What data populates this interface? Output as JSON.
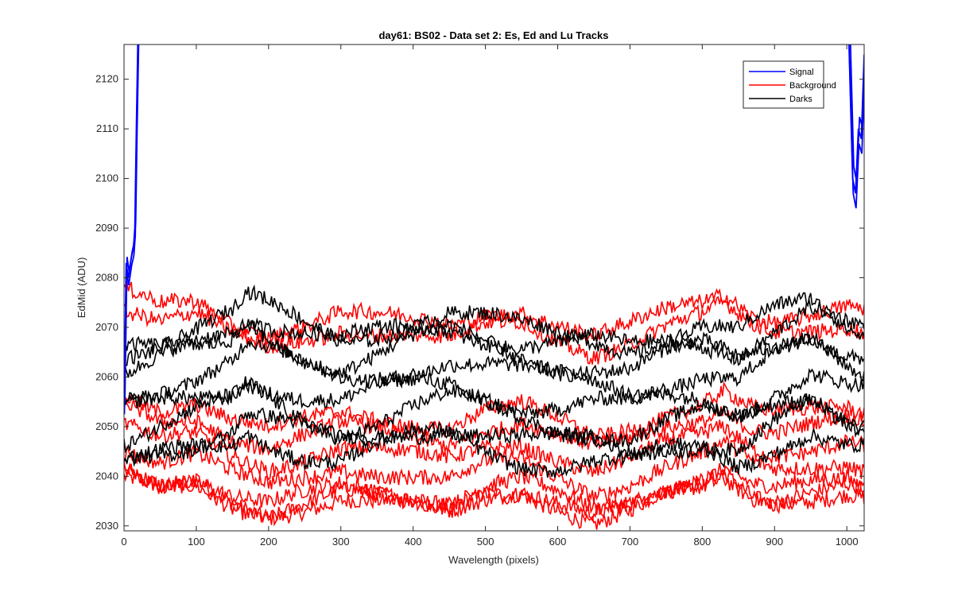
{
  "chart_data": {
    "type": "line",
    "title": "day61: BS02 - Data set 2: Es, Ed and Lu Tracks",
    "xlabel": "Wavelength (pixels)",
    "ylabel": "EdMid (ADU)",
    "xlim": [
      0,
      1024
    ],
    "ylim": [
      2029,
      2127
    ],
    "x_ticks": [
      0,
      100,
      200,
      300,
      400,
      500,
      600,
      700,
      800,
      900,
      1000
    ],
    "y_ticks": [
      2030,
      2040,
      2050,
      2060,
      2070,
      2080,
      2090,
      2100,
      2110,
      2120
    ],
    "grid": false,
    "legend_position": "top-right",
    "series": [
      {
        "name": "Signal",
        "color": "#0000ff",
        "values": [
          [
            0,
            2054
          ],
          [
            3,
            2083
          ],
          [
            6,
            2080
          ],
          [
            10,
            2084
          ],
          [
            13,
            2086
          ],
          [
            15,
            2090
          ],
          [
            17,
            2110
          ],
          [
            19,
            2127
          ],
          [
            1003,
            2127
          ],
          [
            1008,
            2100
          ],
          [
            1012,
            2097
          ],
          [
            1016,
            2110
          ],
          [
            1020,
            2108
          ],
          [
            1024,
            2125
          ]
        ]
      },
      {
        "name": "Background",
        "color": "#ff0000",
        "values": [
          [
            0,
            2077
          ],
          [
            50,
            2074
          ],
          [
            100,
            2075
          ],
          [
            150,
            2071
          ],
          [
            200,
            2069
          ],
          [
            250,
            2071
          ],
          [
            300,
            2073
          ],
          [
            350,
            2072
          ],
          [
            400,
            2071
          ],
          [
            450,
            2070
          ],
          [
            500,
            2073
          ],
          [
            550,
            2074
          ],
          [
            600,
            2071
          ],
          [
            650,
            2068
          ],
          [
            700,
            2070
          ],
          [
            750,
            2073
          ],
          [
            800,
            2075
          ],
          [
            830,
            2077
          ],
          [
            870,
            2073
          ],
          [
            900,
            2072
          ],
          [
            950,
            2073
          ],
          [
            1000,
            2074
          ],
          [
            1024,
            2073
          ]
        ]
      },
      {
        "name": "Darks",
        "color": "#000000",
        "values": [
          [
            0,
            2066
          ],
          [
            50,
            2068
          ],
          [
            100,
            2070
          ],
          [
            150,
            2072
          ],
          [
            170,
            2075
          ],
          [
            200,
            2073
          ],
          [
            250,
            2070
          ],
          [
            300,
            2068
          ],
          [
            350,
            2070
          ],
          [
            400,
            2072
          ],
          [
            450,
            2073
          ],
          [
            500,
            2071
          ],
          [
            550,
            2069
          ],
          [
            600,
            2068
          ],
          [
            650,
            2068
          ],
          [
            700,
            2067
          ],
          [
            750,
            2069
          ],
          [
            800,
            2070
          ],
          [
            850,
            2068
          ],
          [
            900,
            2072
          ],
          [
            950,
            2075
          ],
          [
            1000,
            2071
          ],
          [
            1024,
            2070
          ]
        ]
      }
    ],
    "colors": {
      "axis": "#262626",
      "signal": "#0000ff",
      "background": "#ff0000",
      "darks": "#000000"
    }
  }
}
